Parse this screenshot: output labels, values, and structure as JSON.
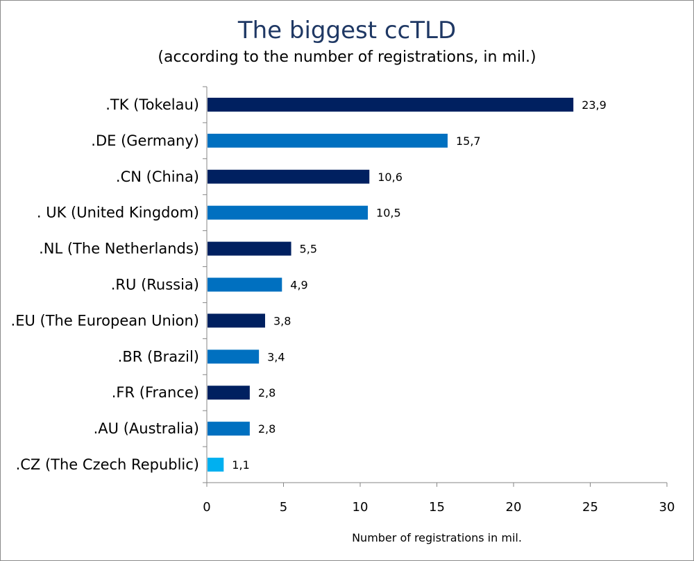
{
  "chart_data": {
    "type": "bar",
    "orientation": "horizontal",
    "title": "The biggest ccTLD",
    "subtitle": "(according to the number of registrations, in mil.)",
    "xlabel": "Number of registrations in mil.",
    "ylabel": "",
    "xlim": [
      0,
      30
    ],
    "ticks": [
      0,
      5,
      10,
      15,
      20,
      25,
      30
    ],
    "tick_labels": [
      "0",
      "5",
      "10",
      "15",
      "20",
      "25",
      "30"
    ],
    "grid": false,
    "legend": "none",
    "categories": [
      ".TK (Tokelau)",
      ".DE (Germany)",
      ".CN (China)",
      ". UK (United Kingdom)",
      ".NL (The Netherlands)",
      ".RU (Russia)",
      ".EU (The European Union)",
      ".BR (Brazil)",
      ".FR (France)",
      ".AU (Australia)",
      ".CZ (The Czech Republic)"
    ],
    "values": [
      23.9,
      15.7,
      10.6,
      10.5,
      5.5,
      4.9,
      3.8,
      3.4,
      2.8,
      2.8,
      1.1
    ],
    "value_labels": [
      "23,9",
      "15,7",
      "10,6",
      "10,5",
      "5,5",
      "4,9",
      "3,8",
      "3,4",
      "2,8",
      "2,8",
      "1,1"
    ],
    "colors": [
      "#002060",
      "#0070c0",
      "#002060",
      "#0070c0",
      "#002060",
      "#0070c0",
      "#002060",
      "#0070c0",
      "#002060",
      "#0070c0",
      "#00b0f0"
    ]
  }
}
